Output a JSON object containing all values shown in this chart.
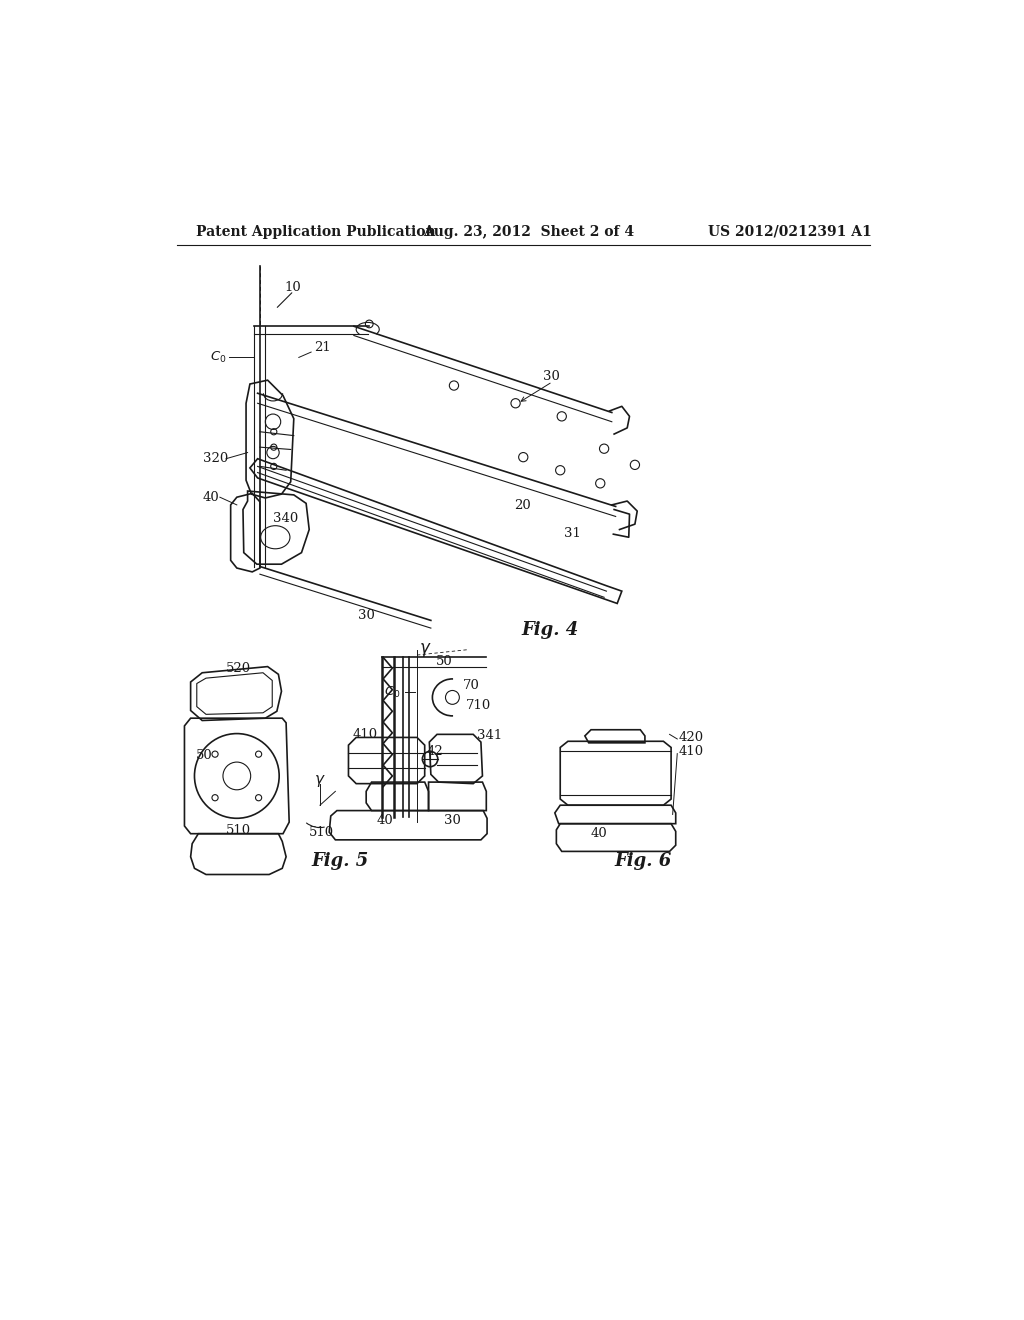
{
  "background_color": "#ffffff",
  "header_left": "Patent Application Publication",
  "header_center": "Aug. 23, 2012  Sheet 2 of 4",
  "header_right": "US 2012/0212391 A1",
  "fig4_label": "Fig. 4",
  "fig5_label": "Fig. 5",
  "fig6_label": "Fig. 6"
}
